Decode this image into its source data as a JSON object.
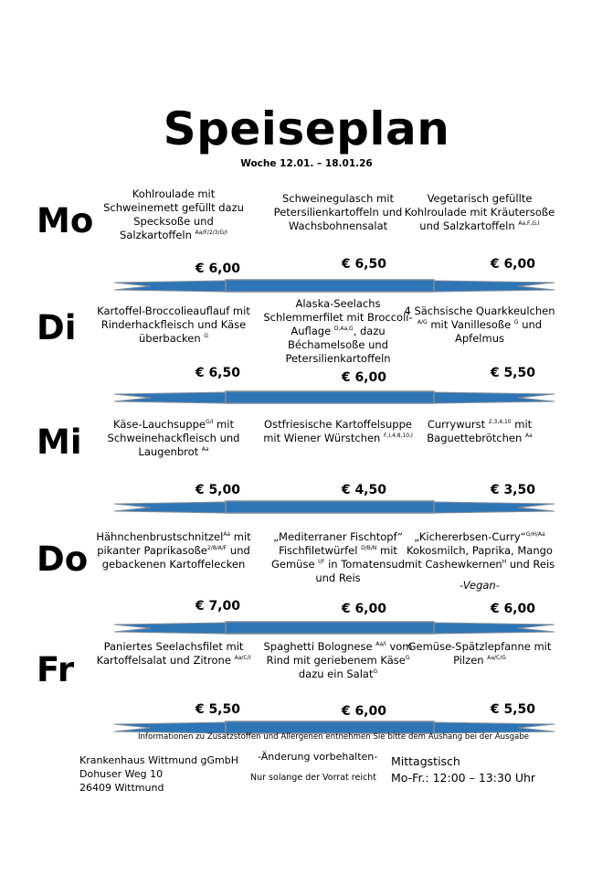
{
  "title": "Speiseplan",
  "week": "Woche 12.01. – 18.01.26",
  "colors": {
    "banner_blue": "#2e75b6",
    "banner_gray": "#7f8c99"
  },
  "days": [
    {
      "label": "Mo",
      "dishes": [
        {
          "parts": [
            {
              "t": "Kohlroulade mit Schweinemett gefüllt dazu Specksoße und Salzkartoffeln "
            },
            {
              "sup": "Aa/F/2/3/G/I"
            }
          ],
          "price": "€ 6,00"
        },
        {
          "parts": [
            {
              "t": "Schweinegulasch mit Petersilienkartoffeln und Wachsbohnensalat"
            }
          ],
          "price": "€ 6,50"
        },
        {
          "parts": [
            {
              "t": "Vegetarisch gefüllte Kohlroulade mit Kräutersoße und Salzkartoffeln "
            },
            {
              "sup": "Aa,F,G,I"
            }
          ],
          "price": "€ 6,00"
        }
      ]
    },
    {
      "label": "Di",
      "dishes": [
        {
          "parts": [
            {
              "t": "Kartoffel-Broccolieauflauf mit Rinderhackfleisch und Käse überbacken "
            },
            {
              "sup": "G"
            }
          ],
          "price": "€ 6,50"
        },
        {
          "parts": [
            {
              "t": "Alaska-Seelachs Schlemmerfilet mit Broccoli-Auflage "
            },
            {
              "sup": "D,Aa,G"
            },
            {
              "t": ", dazu Béchamelsoße und Petersilienkartoffeln"
            }
          ],
          "price": "€ 6,00"
        },
        {
          "parts": [
            {
              "t": "4 Sächsische Quarkkeulchen "
            },
            {
              "sup": "A/G"
            },
            {
              "t": " mit Vanillesoße "
            },
            {
              "sup": "G"
            },
            {
              "t": " und Apfelmus"
            }
          ],
          "price": "€ 5,50"
        }
      ]
    },
    {
      "label": "Mi",
      "dishes": [
        {
          "parts": [
            {
              "t": "Käse-Lauchsuppe"
            },
            {
              "sup": "G/I"
            },
            {
              "t": " mit Schweinehackfleisch und Laugenbrot "
            },
            {
              "sup": "Aa"
            }
          ],
          "price": "€ 5,00"
        },
        {
          "parts": [
            {
              "t": "Ostfriesische Kartoffelsuppe mit Wiener Würstchen "
            },
            {
              "sup": "F,I,4,8,10,I"
            }
          ],
          "price": "€ 4,50"
        },
        {
          "parts": [
            {
              "t": "Currywurst "
            },
            {
              "sup": "2,3,4,10"
            },
            {
              "t": " mit Baguettebrötchen "
            },
            {
              "sup": "Aa"
            }
          ],
          "price": "€ 3,50"
        }
      ]
    },
    {
      "label": "Do",
      "dishes": [
        {
          "parts": [
            {
              "t": "Hähnchenbrustschnitzel"
            },
            {
              "sup": "Aa"
            },
            {
              "t": " mit pikanter Paprikasoße"
            },
            {
              "sup": "2/8/A/F"
            },
            {
              "t": " und gebackenen Kartoffelecken"
            }
          ],
          "price": "€ 7,00"
        },
        {
          "parts": [
            {
              "t": "„Mediterraner Fischtopf“ Fischfiletwürfel "
            },
            {
              "sup": "D/B/N"
            },
            {
              "t": " mit Gemüse "
            },
            {
              "sup": "I/F"
            },
            {
              "t": " in Tomatensud und Reis"
            }
          ],
          "price": "€ 6,00"
        },
        {
          "parts": [
            {
              "t": "„Kichererbsen-Curry“"
            },
            {
              "sup": "G/H/Aa"
            },
            {
              "t": " Kokosmilch, Paprika, Mango mit Cashewkernen"
            },
            {
              "sup": "H"
            },
            {
              "t": " und Reis"
            },
            {
              "note": "-Vegan-"
            }
          ],
          "price": "€ 6,00"
        }
      ]
    },
    {
      "label": "Fr",
      "dishes": [
        {
          "parts": [
            {
              "t": "Paniertes Seelachsfilet mit Kartoffelsalat und Zitrone "
            },
            {
              "sup": "Aa/C/I"
            }
          ],
          "price": "€ 5,50"
        },
        {
          "parts": [
            {
              "t": "Spaghetti Bolognese "
            },
            {
              "sup": "Aa/I"
            },
            {
              "t": " vom Rind mit geriebenem Käse"
            },
            {
              "sup": "G"
            },
            {
              "t": " dazu ein Salat"
            },
            {
              "sup": "G"
            }
          ],
          "price": "€ 6,00"
        },
        {
          "parts": [
            {
              "t": "Gemüse-Spätzlepfanne mit Pilzen "
            },
            {
              "sup": "Aa/C/G"
            }
          ],
          "price": "€ 5,50"
        }
      ]
    }
  ],
  "footer": {
    "info": "Informationen zu Zusatzstoffen und Allergenen entnehmen Sie bitte dem Aushang bei der Ausgabe",
    "address": [
      "Krankenhaus Wittmund gGmbH",
      "Dohuser Weg 10",
      "26409 Wittmund"
    ],
    "change_notice": "-Änderung vorbehalten-",
    "stock_notice": "Nur solange der Vorrat reicht",
    "lunch_title": "Mittagstisch",
    "lunch_hours": "Mo-Fr.: 12:00 – 13:30 Uhr"
  }
}
